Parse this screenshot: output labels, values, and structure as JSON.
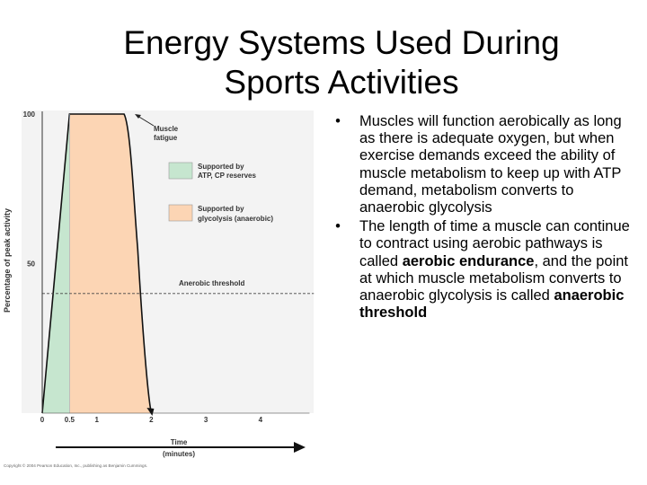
{
  "slide": {
    "title_line1": "Energy Systems Used During",
    "title_line2": "Sports Activities"
  },
  "chart_data": {
    "type": "area",
    "xlabel": "Time (minutes)",
    "ylabel": "Percentage of peak activity",
    "x_ticks": [
      "0",
      "0.5",
      "1",
      "2",
      "3",
      "4"
    ],
    "y_ticks": [
      "100",
      "50"
    ],
    "xlim": [
      0,
      4
    ],
    "ylim": [
      0,
      100
    ],
    "series": [
      {
        "name": "Supported by ATP, CP reserves",
        "color": "#c6e6cf",
        "x": [
          0,
          0.5
        ],
        "y": [
          0,
          100
        ]
      },
      {
        "name": "Supported by glycolysis (anaerobic)",
        "color": "#fcd5b4",
        "x": [
          0.5,
          1.0,
          1.5,
          1.75,
          2.0
        ],
        "y": [
          100,
          100,
          100,
          55,
          0
        ]
      }
    ],
    "threshold": {
      "label": "Anerobic threshold",
      "y": 40
    },
    "annotation": {
      "label_line1": "Muscle",
      "label_line2": "fatigue",
      "x": 1.75,
      "y": 100
    },
    "x_axis_caption_line1": "Time",
    "x_axis_caption_line2": "(minutes)",
    "copyright": "Copyright © 2004 Pearson Education, Inc., publishing as Benjamin Cummings."
  },
  "bullets": [
    {
      "text": "Muscles will function aerobically as long as there is adequate oxygen, but when exercise demands exceed the ability of muscle metabolism to keep up with ATP demand, metabolism converts to anaerobic glycolysis"
    },
    {
      "pre": "The length of time a muscle can continue to contract using aerobic pathways is called ",
      "bold1": "aerobic endurance",
      "mid": ", and the point at which muscle metabolism converts to anaerobic glycolysis is called ",
      "bold2": "anaerobic threshold"
    }
  ],
  "bullet_symbol": "•"
}
